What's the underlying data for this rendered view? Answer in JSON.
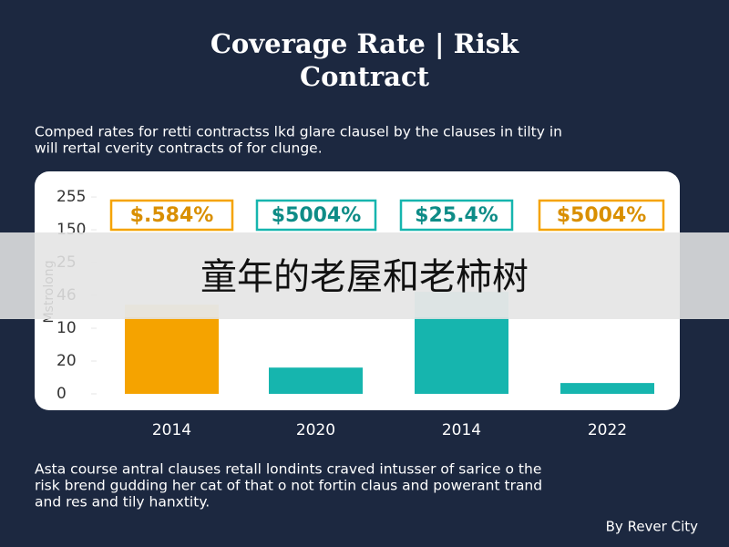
{
  "chart_data": {
    "type": "bar",
    "title": [
      "Coverage Rate | Risk",
      "Contract"
    ],
    "subtitle": [
      "Comped rates for retti contractss lkd glare clausel by the clauses in tilty in",
      "will rertal cverity contracts of for clunge."
    ],
    "y_label": "Mstrolong",
    "categories": [
      "2014",
      "2020",
      "2014",
      "2022"
    ],
    "series": [
      {
        "colors": [
          "#f5a300",
          "#16b5ae",
          "#16b5ae",
          "#16b5ae"
        ],
        "values": [
          2.33,
          0.8,
          2.33,
          0.33
        ]
      },
      {
        "colors": [
          "#fde0a6",
          "#16b5ae",
          "#a9e6e3",
          "#16b5ae"
        ],
        "values": [
          0.39,
          0,
          0.78,
          0
        ]
      }
    ],
    "badges": [
      "$.584%",
      "$5004%",
      "$25.4%",
      "$5004%"
    ],
    "badge_colors": [
      "#f5a300",
      "#16b5ae",
      "#16b5ae",
      "#f5a300"
    ],
    "ylim": [
      0,
      6.78
    ],
    "yticks": [
      {
        "value": 0,
        "label": "0"
      },
      {
        "value": 1,
        "label": "20"
      },
      {
        "value": 2,
        "label": "10"
      },
      {
        "value": 3,
        "label": "46"
      },
      {
        "value": 4,
        "label": "25"
      },
      {
        "value": 5,
        "label": "150"
      },
      {
        "value": 6,
        "label": "255"
      }
    ],
    "footer": [
      "Asta course antral clauses retall londints craved intusser of sarice o the",
      "risk brend gudding her cat of that o not fortin claus and powerant trand",
      "and res and tily hanxtity."
    ],
    "credit": "By Rever City",
    "overlay_text": "童年的老屋和老柿树"
  }
}
